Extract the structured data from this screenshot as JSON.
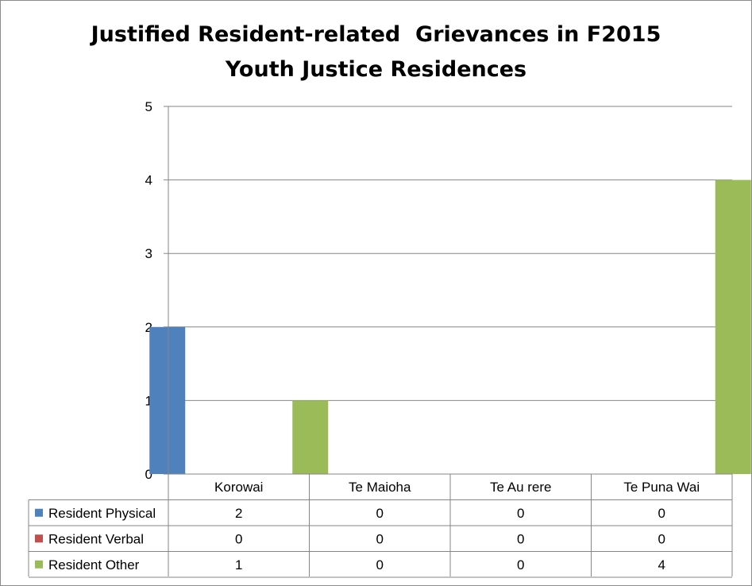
{
  "chart_data": {
    "type": "bar",
    "title_lines": [
      "Justified Resident-related  Grievances in F2015",
      "Youth Justice Residences"
    ],
    "categories": [
      "Korowai",
      "Te Maioha",
      "Te Au rere",
      "Te Puna Wai"
    ],
    "series": [
      {
        "name": "Resident Physical",
        "values": [
          2,
          0,
          0,
          0
        ],
        "color": "#4f81bd"
      },
      {
        "name": "Resident Verbal",
        "values": [
          0,
          0,
          0,
          0
        ],
        "color": "#c0504d"
      },
      {
        "name": "Resident Other",
        "values": [
          1,
          0,
          0,
          4
        ],
        "color": "#9bbb59"
      }
    ],
    "yticks": [
      "0",
      "1",
      "2",
      "3",
      "4",
      "5"
    ],
    "ylim": [
      0,
      5
    ],
    "grid": true,
    "legend": "data-table",
    "data_table": true
  }
}
